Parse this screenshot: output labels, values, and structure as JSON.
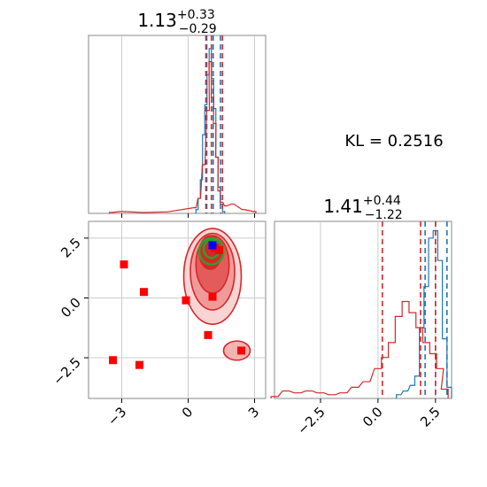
{
  "chart_data": [
    {
      "type": "step-histogram",
      "panel": "x marginal",
      "title": {
        "value": "1.13",
        "sup": "+0.33",
        "sub": "−0.29"
      },
      "xlim": [
        -4.5,
        3.5
      ],
      "xticks": [
        -3,
        0,
        3
      ],
      "series": [
        {
          "color": "#1f77b4",
          "x": [
            0.4,
            0.5,
            0.6,
            0.7,
            0.8,
            0.9,
            1.0,
            1.1,
            1.2,
            1.3,
            1.4,
            1.5,
            1.6
          ],
          "y": [
            0.02,
            0.08,
            0.18,
            0.42,
            0.58,
            0.74,
            0.88,
            0.72,
            0.56,
            0.3,
            0.14,
            0.05,
            0.01
          ]
        },
        {
          "color": "#d62728",
          "x": [
            -3.5,
            -3.0,
            -2.0,
            -1.0,
            0.3,
            0.5,
            0.7,
            0.9,
            1.0,
            1.1,
            1.2,
            1.3,
            1.4,
            1.5,
            1.7,
            2.0,
            2.5,
            3.0
          ],
          "y": [
            0.005,
            0.01,
            0.005,
            0.008,
            0.03,
            0.08,
            0.26,
            0.55,
            0.81,
            0.62,
            0.48,
            0.3,
            0.12,
            0.06,
            0.04,
            0.05,
            0.02,
            0.01
          ]
        }
      ],
      "vlines": [
        {
          "x": 0.84,
          "color": "#1f77b4"
        },
        {
          "x": 1.13,
          "color": "#1f77b4"
        },
        {
          "x": 1.46,
          "color": "#1f77b4"
        },
        {
          "x": 0.8,
          "color": "#d62728"
        },
        {
          "x": 1.05,
          "color": "#d62728"
        },
        {
          "x": 1.55,
          "color": "#d62728"
        }
      ]
    },
    {
      "type": "contour-scatter",
      "panel": "joint",
      "xlim": [
        -4.5,
        3.5
      ],
      "ylim": [
        -4.2,
        3.2
      ],
      "xticks": [
        -3,
        0,
        3
      ],
      "yticks": [
        2.5,
        0.0,
        -2.5
      ],
      "ytick_labels": [
        "2.5",
        "0.0",
        "−2.5"
      ],
      "markers": [
        {
          "x": -2.9,
          "y": 1.4,
          "color": "#ff0000"
        },
        {
          "x": -2.0,
          "y": 0.25,
          "color": "#ff0000"
        },
        {
          "x": -0.1,
          "y": -0.1,
          "color": "#ff0000"
        },
        {
          "x": 1.1,
          "y": 0.05,
          "color": "#ff0000"
        },
        {
          "x": 1.2,
          "y": 2.1,
          "color": "#ff0000"
        },
        {
          "x": 1.4,
          "y": 2.0,
          "color": "#ff0000"
        },
        {
          "x": 0.9,
          "y": -1.55,
          "color": "#ff0000"
        },
        {
          "x": 2.4,
          "y": -2.2,
          "color": "#ff0000"
        },
        {
          "x": -3.4,
          "y": -2.6,
          "color": "#ff0000"
        },
        {
          "x": -2.2,
          "y": -2.8,
          "color": "#ff0000"
        },
        {
          "x": 1.1,
          "y": 2.2,
          "color": "#0000ff"
        }
      ],
      "red_contours": [
        {
          "cx": 1.1,
          "cy": 0.9,
          "rx": 1.3,
          "ry": 2.0,
          "fill": "#f9d4d4"
        },
        {
          "cx": 1.1,
          "cy": 1.1,
          "rx": 1.0,
          "ry": 1.6,
          "fill": "#f09a9a"
        },
        {
          "cx": 1.1,
          "cy": 1.4,
          "rx": 0.75,
          "ry": 1.2,
          "fill": "#e45b5b"
        },
        {
          "cx": 1.0,
          "cy": 1.9,
          "rx": 0.5,
          "ry": 0.7,
          "fill": "#d62728"
        },
        {
          "cx": 2.2,
          "cy": -2.2,
          "rx": 0.6,
          "ry": 0.4,
          "fill": "#f4b3b3"
        }
      ],
      "green_contours": [
        {
          "cx": 1.05,
          "cy": 1.95,
          "rx": 0.55,
          "ry": 0.55
        },
        {
          "cx": 1.05,
          "cy": 2.05,
          "rx": 0.35,
          "ry": 0.38
        }
      ]
    },
    {
      "type": "step-histogram",
      "panel": "y marginal",
      "title": {
        "value": "1.41",
        "sup": "+0.44",
        "sub": "−1.22"
      },
      "xlim": [
        -4.5,
        3.2
      ],
      "xticks": [
        -2.5,
        0.0,
        2.5
      ],
      "xtick_labels": [
        "−2.5",
        "0.0",
        "2.5"
      ],
      "series": [
        {
          "color": "#1f77b4",
          "x": [
            0.9,
            1.2,
            1.5,
            1.7,
            1.9,
            2.1,
            2.3,
            2.5,
            2.7,
            2.9,
            3.1
          ],
          "y": [
            0.02,
            0.04,
            0.07,
            0.12,
            0.38,
            0.6,
            0.86,
            0.9,
            0.74,
            0.32,
            0.06
          ]
        },
        {
          "color": "#d62728",
          "x": [
            -4.5,
            -4.0,
            -3.5,
            -3.0,
            -2.5,
            -2.0,
            -1.5,
            -1.0,
            -0.5,
            0.0,
            0.3,
            0.6,
            0.9,
            1.2,
            1.5,
            1.8,
            2.1,
            2.4,
            2.7,
            2.9
          ],
          "y": [
            0.01,
            0.04,
            0.03,
            0.04,
            0.03,
            0.02,
            0.03,
            0.06,
            0.09,
            0.16,
            0.22,
            0.3,
            0.44,
            0.52,
            0.46,
            0.38,
            0.3,
            0.24,
            0.16,
            0.05
          ]
        }
      ],
      "vlines": [
        {
          "x": 2.05,
          "color": "#1f77b4"
        },
        {
          "x": 2.5,
          "color": "#1f77b4"
        },
        {
          "x": 3.0,
          "color": "#1f77b4"
        },
        {
          "x": 0.19,
          "color": "#d62728"
        },
        {
          "x": 1.85,
          "color": "#d62728"
        },
        {
          "x": 2.5,
          "color": "#d62728"
        }
      ]
    }
  ],
  "annotation": {
    "kl_text": "KL = 0.2516"
  }
}
